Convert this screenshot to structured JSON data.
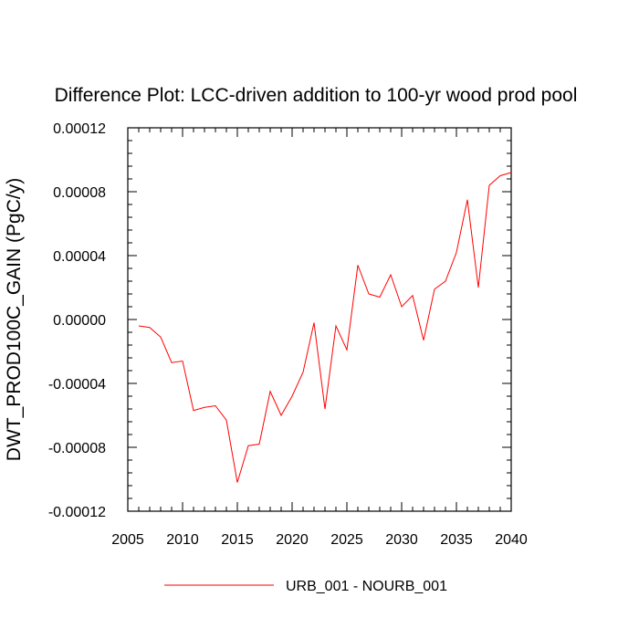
{
  "chart_data": {
    "type": "line",
    "title": "Difference Plot: LCC-driven addition to 100-yr wood prod pool",
    "xlabel": "",
    "ylabel": "DWT_PROD100C_GAIN  (PgC/y)",
    "xlim": [
      2005,
      2040
    ],
    "ylim": [
      -0.00012,
      0.00012
    ],
    "x_ticks": [
      2005,
      2010,
      2015,
      2020,
      2025,
      2030,
      2035,
      2040
    ],
    "x_tick_labels": [
      "2005",
      "2010",
      "2015",
      "2020",
      "2025",
      "2030",
      "2035",
      "2040"
    ],
    "y_ticks": [
      -0.00012,
      -8e-05,
      -4e-05,
      0.0,
      4e-05,
      8e-05,
      0.00012
    ],
    "y_tick_labels": [
      "-0.00012",
      "-0.00008",
      "-0.00004",
      "0.00000",
      "0.00004",
      "0.00008",
      "0.00012"
    ],
    "grid": false,
    "legend_position": "bottom-center",
    "series": [
      {
        "name": "URB_001 - NOURB_001",
        "color": "#ff0000",
        "x": [
          2006,
          2007,
          2008,
          2009,
          2010,
          2011,
          2012,
          2013,
          2014,
          2015,
          2016,
          2017,
          2018,
          2019,
          2020,
          2021,
          2022,
          2023,
          2024,
          2025,
          2026,
          2027,
          2028,
          2029,
          2030,
          2031,
          2032,
          2033,
          2034,
          2035,
          2036,
          2037,
          2038,
          2039,
          2040
        ],
        "y": [
          -4e-06,
          -5e-06,
          -1.1e-05,
          -2.7e-05,
          -2.6e-05,
          -5.7e-05,
          -5.5e-05,
          -5.4e-05,
          -6.3e-05,
          -0.000102,
          -7.9e-05,
          -7.8e-05,
          -4.5e-05,
          -6e-05,
          -4.8e-05,
          -3.3e-05,
          -2e-06,
          -5.6e-05,
          -4e-06,
          -1.9e-05,
          3.4e-05,
          1.6e-05,
          1.4e-05,
          2.8e-05,
          8e-06,
          1.5e-05,
          -1.3e-05,
          1.9e-05,
          2.4e-05,
          4.2e-05,
          7.5e-05,
          2e-05,
          8.4e-05,
          9e-05,
          9.2e-05
        ]
      }
    ]
  }
}
